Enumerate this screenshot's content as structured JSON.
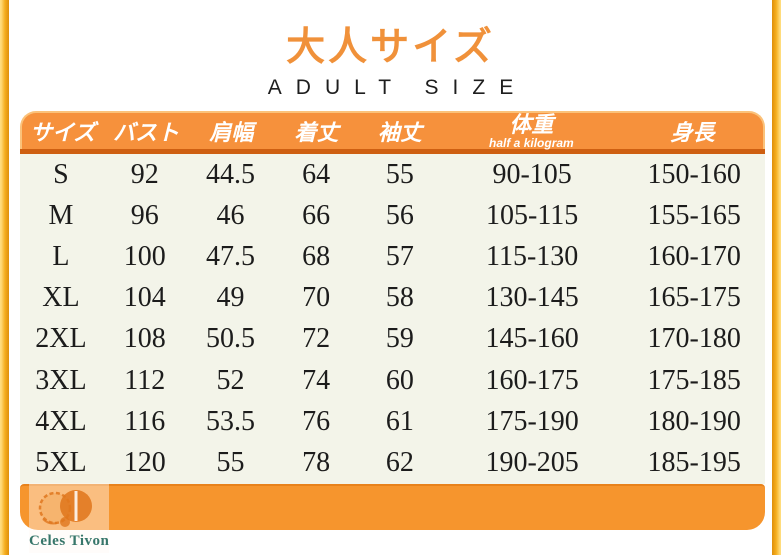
{
  "page": {
    "title_jp": "大人サイズ",
    "title_en": "A D U L T   S I Z E",
    "title_en_plain": "ADULT SIZE"
  },
  "colors": {
    "title_orange": "#F0913A",
    "header_orange": "#F6913C",
    "header_highlight_border": "#FBC27A",
    "header_underline": "#CE5F11",
    "body_cream": "#F3F4E9",
    "footer_bar_orange": "#F6952D",
    "edge_strip_yellow": "#F5AE1E",
    "row_text": "#1C1C1C",
    "logo_orange": "#E0771E",
    "logo_teal": "#37766A"
  },
  "chart_data": {
    "type": "table",
    "title": "大人サイズ",
    "subtitle": "ADULT SIZE",
    "columns": [
      {
        "label": "サイズ"
      },
      {
        "label": "バスト"
      },
      {
        "label": "肩幅"
      },
      {
        "label": "着丈"
      },
      {
        "label": "袖丈"
      },
      {
        "label": "体重",
        "sublabel": "half a kilogram"
      },
      {
        "label": "身長"
      }
    ],
    "rows": [
      [
        "S",
        "92",
        "44.5",
        "64",
        "55",
        "90-105",
        "150-160"
      ],
      [
        "M",
        "96",
        "46",
        "66",
        "56",
        "105-115",
        "155-165"
      ],
      [
        "L",
        "100",
        "47.5",
        "68",
        "57",
        "115-130",
        "160-170"
      ],
      [
        "XL",
        "104",
        "49",
        "70",
        "58",
        "130-145",
        "165-175"
      ],
      [
        "2XL",
        "108",
        "50.5",
        "72",
        "59",
        "145-160",
        "170-180"
      ],
      [
        "3XL",
        "112",
        "52",
        "74",
        "60",
        "160-175",
        "175-185"
      ],
      [
        "4XL",
        "116",
        "53.5",
        "76",
        "61",
        "175-190",
        "180-190"
      ],
      [
        "5XL",
        "120",
        "55",
        "78",
        "62",
        "190-205",
        "185-195"
      ]
    ]
  },
  "logo": {
    "text": "Celes Tivon"
  }
}
